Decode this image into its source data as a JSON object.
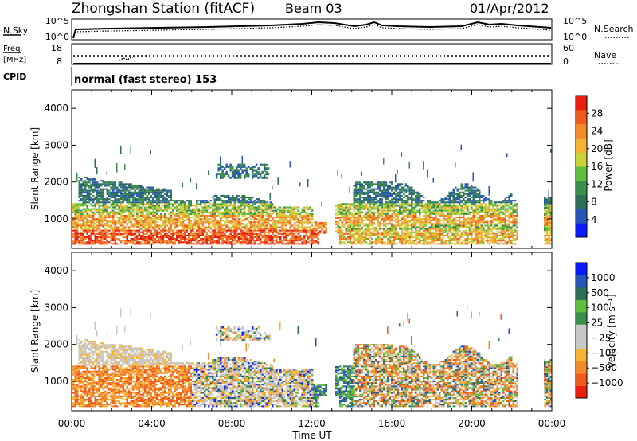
{
  "header": {
    "title": "Zhongshan Station (fitACF)",
    "beam": "Beam 03",
    "date": "01/Apr/2012"
  },
  "noise_panel": {
    "left_label": "N.Sky",
    "right_label": "N.Search",
    "left_ticks": [
      "10^5",
      "10^0"
    ],
    "right_ticks": [
      "10^5",
      "10^0"
    ]
  },
  "freq_panel": {
    "left_label_1": "Freq.",
    "left_label_2": "[MHz]",
    "right_label": "Nave",
    "left_ticks": [
      "18",
      "8"
    ],
    "right_ticks": [
      "60",
      "0"
    ]
  },
  "cpid": {
    "label": "CPID",
    "mode_text": "normal (fast stereo) 153"
  },
  "colors": {
    "power": [
      "#0a1cff",
      "#2a55b8",
      "#2e6e55",
      "#3c8e4c",
      "#62be3c",
      "#c8d43a",
      "#f5b233",
      "#f08a2a",
      "#f05a1e",
      "#e81e10"
    ],
    "velocity": [
      "#e81e10",
      "#f05a1e",
      "#f08a2a",
      "#f5b233",
      "#c8c8c8",
      "#c8c8c8",
      "#3c8e4c",
      "#62be3c",
      "#2e6e55",
      "#2a55b8",
      "#0a1cff"
    ]
  },
  "chart_data": [
    {
      "type": "heatmap",
      "name": "power",
      "ylabel": "Slant Range [km]",
      "yticks": [
        "4000",
        "3000",
        "2000",
        "1000"
      ],
      "ylim": [
        200,
        4500
      ],
      "x_ticks": [
        "00:00",
        "04:00",
        "08:00",
        "12:00",
        "16:00",
        "20:00",
        "00:00"
      ],
      "colorbar": {
        "label": "Power [dB]",
        "ticks": [
          "28",
          "24",
          "20",
          "16",
          "12",
          "8",
          "4"
        ],
        "range": [
          0,
          30
        ]
      }
    },
    {
      "type": "heatmap",
      "name": "velocity",
      "ylabel": "Slant Range [km]",
      "yticks": [
        "4000",
        "3000",
        "2000",
        "1000"
      ],
      "ylim": [
        200,
        4500
      ],
      "x_ticks": [
        "00:00",
        "04:00",
        "08:00",
        "12:00",
        "16:00",
        "20:00",
        "00:00"
      ],
      "xlabel": "Time UT",
      "colorbar": {
        "label": "Velocity [m s⁻¹]",
        "ticks": [
          "1000",
          "500",
          "100",
          "25",
          "−25",
          "−100",
          "−500",
          "−1000"
        ]
      }
    }
  ]
}
